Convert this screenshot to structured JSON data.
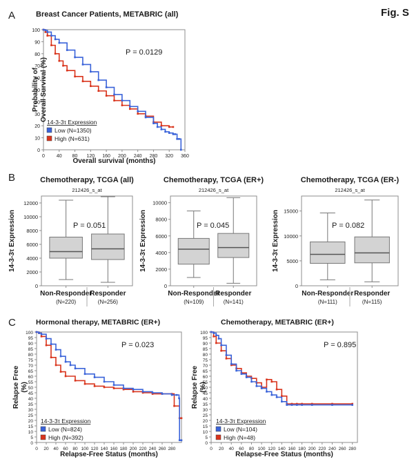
{
  "figure_label": "Fig. S",
  "panel_labels": {
    "A": "A",
    "B": "B",
    "C": "C"
  },
  "colors": {
    "low": "#3a63d9",
    "high": "#d9341c",
    "box_fill": "#d3d3d3",
    "frame": "#8c8c8c",
    "text": "#1a1a1a"
  },
  "chart_data": [
    {
      "type": "line",
      "title": "Breast Cancer Patients, METABRIC (all)",
      "xlabel": "Overall survival (months)",
      "ylabel_lines": [
        "Probability of",
        "Overall Survival (%)"
      ],
      "xlim": [
        0,
        360
      ],
      "ylim": [
        0,
        100
      ],
      "xticks": [
        0,
        40,
        80,
        120,
        160,
        200,
        240,
        280,
        320,
        360
      ],
      "xtick_labels": [
        "0",
        "40",
        "80",
        "120",
        "160",
        "200",
        "240",
        "280",
        "320",
        "360"
      ],
      "yticks": [
        0,
        10,
        20,
        30,
        40,
        50,
        60,
        70,
        80,
        90,
        100
      ],
      "annotation": "P = 0.0129",
      "legend_title": "14-3-3τ Expression",
      "series": [
        {
          "name": "Low (N=1350)",
          "key": "low",
          "x": [
            0,
            5,
            10,
            20,
            30,
            40,
            60,
            80,
            100,
            120,
            140,
            160,
            180,
            200,
            220,
            240,
            260,
            280,
            290,
            300,
            310,
            320,
            330,
            335,
            340,
            345,
            350
          ],
          "y": [
            100,
            99.5,
            98,
            95,
            92,
            89,
            83,
            77,
            71,
            65,
            58,
            52,
            46,
            41,
            36,
            32,
            27,
            22,
            19,
            17,
            15,
            14,
            13,
            13,
            9,
            9,
            0
          ]
        },
        {
          "name": "High (N=631)",
          "key": "high",
          "x": [
            0,
            5,
            10,
            20,
            30,
            40,
            50,
            60,
            80,
            100,
            120,
            140,
            160,
            180,
            200,
            220,
            240,
            260,
            280,
            300,
            320,
            330
          ],
          "y": [
            100,
            98,
            95,
            87,
            80,
            74,
            70,
            66,
            61,
            57,
            53,
            49,
            45,
            41,
            37,
            34,
            30,
            28,
            23,
            20,
            19,
            19
          ]
        }
      ]
    },
    {
      "type": "box",
      "title": "Chemotherapy, TCGA (all)",
      "subtitle": "212426_s_at",
      "ylabel": "14-3-3τ Expression",
      "ylim": [
        0,
        13000
      ],
      "yticks": [
        0,
        2000,
        4000,
        6000,
        8000,
        10000,
        12000
      ],
      "annotation": "P = 0.051",
      "groups": [
        {
          "label": "Non-Responder",
          "n": "(N=220)",
          "whisker_low": 900,
          "q1": 4000,
          "median": 4950,
          "q3": 7050,
          "whisker_high": 12400
        },
        {
          "label": "Responder",
          "n": "(N=256)",
          "whisker_low": 500,
          "q1": 3800,
          "median": 5350,
          "q3": 7500,
          "whisker_high": 12900
        }
      ]
    },
    {
      "type": "box",
      "title": "Chemotherapy, TCGA (ER+)",
      "subtitle": "212426_s_at",
      "ylabel": "14-3-3τ Expression",
      "ylim": [
        0,
        10800
      ],
      "yticks": [
        0,
        2000,
        4000,
        6000,
        8000,
        10000
      ],
      "annotation": "P = 0.045",
      "groups": [
        {
          "label": "Non-Responder",
          "n": "(N=109)",
          "whisker_low": 1000,
          "q1": 2600,
          "median": 4400,
          "q3": 5700,
          "whisker_high": 9000
        },
        {
          "label": "Responder",
          "n": "(N=141)",
          "whisker_low": 300,
          "q1": 3400,
          "median": 4600,
          "q3": 6300,
          "whisker_high": 10600
        }
      ]
    },
    {
      "type": "box",
      "title": "Chemotherapy, TCGA (ER-)",
      "subtitle": "212426_s_at",
      "ylabel": "14-3-3τ Expression",
      "ylim": [
        0,
        18000
      ],
      "yticks": [
        0,
        5000,
        10000,
        15000
      ],
      "annotation": "P = 0.082",
      "groups": [
        {
          "label": "Non-Responder",
          "n": "(N=111)",
          "whisker_low": 1200,
          "q1": 4500,
          "median": 6300,
          "q3": 8800,
          "whisker_high": 14600
        },
        {
          "label": "Responder",
          "n": "(N=115)",
          "whisker_low": 800,
          "q1": 4600,
          "median": 6600,
          "q3": 9800,
          "whisker_high": 17200
        }
      ]
    },
    {
      "type": "line",
      "title": "Hormonal therapy, METABRIC (ER+)",
      "xlabel": "Relapse-Free Status (months)",
      "ylabel_lines": [
        "Relapse Free",
        "(%)"
      ],
      "xlim": [
        0,
        300
      ],
      "ylim": [
        0,
        100
      ],
      "xticks": [
        0,
        20,
        40,
        60,
        80,
        100,
        120,
        140,
        160,
        180,
        200,
        220,
        240,
        260,
        280
      ],
      "xtick_labels": [
        "0",
        "20",
        "40",
        "60",
        "80",
        "100",
        "120",
        "140",
        "160",
        "180",
        "200",
        "220",
        "240",
        "260",
        "280"
      ],
      "yticks": [
        0,
        5,
        10,
        15,
        20,
        25,
        30,
        35,
        40,
        45,
        50,
        55,
        60,
        65,
        70,
        75,
        80,
        85,
        90,
        95,
        100
      ],
      "annotation": "P = 0.023",
      "legend_title": "14-3-3τ Expression",
      "series": [
        {
          "name": "Low (N=824)",
          "key": "low",
          "x": [
            0,
            5,
            10,
            20,
            30,
            40,
            50,
            60,
            70,
            80,
            100,
            120,
            140,
            160,
            180,
            200,
            220,
            240,
            260,
            280,
            290,
            295,
            296,
            300
          ],
          "y": [
            100,
            99,
            98,
            94,
            89,
            84,
            78,
            73,
            70,
            67,
            62,
            59,
            55,
            52,
            49,
            48,
            46,
            45,
            44,
            43,
            43,
            40,
            2,
            2
          ]
        },
        {
          "name": "High (N=392)",
          "key": "high",
          "x": [
            0,
            5,
            10,
            20,
            30,
            40,
            50,
            60,
            80,
            100,
            120,
            140,
            160,
            180,
            200,
            220,
            240,
            260,
            280,
            285,
            296,
            300
          ],
          "y": [
            100,
            99,
            96,
            88,
            77,
            70,
            64,
            60,
            56,
            53,
            51,
            50,
            49,
            48,
            46,
            45,
            44,
            44,
            44,
            33,
            22,
            22
          ]
        }
      ]
    },
    {
      "type": "line",
      "title": "Chemotherapy, METABRIC (ER+)",
      "xlabel": "Relapse-Free Status (months)",
      "ylabel_lines": [
        "Relapse Free",
        "(%)"
      ],
      "xlim": [
        0,
        290
      ],
      "ylim": [
        0,
        100
      ],
      "xticks": [
        0,
        20,
        40,
        60,
        80,
        100,
        120,
        140,
        160,
        180,
        200,
        220,
        240,
        260,
        280
      ],
      "xtick_labels": [
        "0",
        "20",
        "40",
        "60",
        "80",
        "100",
        "120",
        "140",
        "160",
        "180",
        "200",
        "220",
        "240",
        "260",
        "280"
      ],
      "yticks": [
        0,
        5,
        10,
        15,
        20,
        25,
        30,
        35,
        40,
        45,
        50,
        55,
        60,
        65,
        70,
        75,
        80,
        85,
        90,
        95,
        100
      ],
      "annotation": "P = 0.895",
      "legend_title": "14-3-3τ Expression",
      "series": [
        {
          "name": "Low (N=104)",
          "key": "low",
          "x": [
            0,
            5,
            10,
            15,
            20,
            30,
            40,
            50,
            60,
            70,
            80,
            90,
            100,
            110,
            120,
            130,
            140,
            150,
            160,
            170,
            180,
            200,
            240,
            280
          ],
          "y": [
            100,
            99,
            97,
            94,
            88,
            79,
            71,
            65,
            62,
            59,
            55,
            51,
            49,
            46,
            43,
            41,
            37,
            34,
            34,
            34,
            34,
            34,
            34,
            34
          ]
        },
        {
          "name": "High (N=48)",
          "key": "high",
          "x": [
            0,
            5,
            10,
            20,
            30,
            40,
            50,
            60,
            70,
            80,
            90,
            100,
            110,
            120,
            130,
            140,
            150,
            160,
            170,
            180,
            200,
            240,
            280
          ],
          "y": [
            100,
            96,
            90,
            83,
            76,
            70,
            67,
            63,
            60,
            58,
            54,
            50,
            57,
            55,
            48,
            42,
            35,
            35,
            35,
            35,
            35,
            35,
            35
          ]
        }
      ]
    }
  ]
}
